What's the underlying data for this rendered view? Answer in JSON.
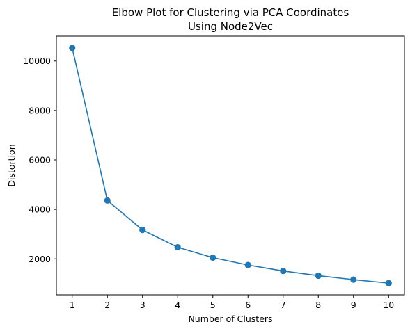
{
  "chart_data": {
    "type": "line",
    "title": [
      "Elbow Plot for Clustering via PCA Coordinates",
      "Using Node2Vec"
    ],
    "xlabel": "Number of Clusters",
    "ylabel": "Distortion",
    "x": [
      1,
      2,
      3,
      4,
      5,
      6,
      7,
      8,
      9,
      10
    ],
    "y": [
      10530,
      4360,
      3170,
      2470,
      2050,
      1750,
      1510,
      1320,
      1160,
      1020
    ],
    "xticks": [
      "1",
      "2",
      "3",
      "4",
      "5",
      "6",
      "7",
      "8",
      "9",
      "10"
    ],
    "yticks": [
      2000,
      4000,
      6000,
      8000,
      10000
    ],
    "xlim": [
      0.55,
      10.45
    ],
    "ylim": [
      545,
      11005
    ],
    "grid": false,
    "line_color": "#1f77b4",
    "marker": "circle"
  }
}
